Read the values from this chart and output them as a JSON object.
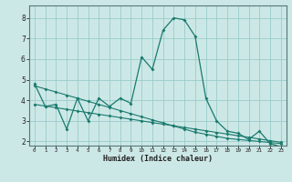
{
  "xlabel": "Humidex (Indice chaleur)",
  "background_color": "#cce8e6",
  "grid_color": "#99ccca",
  "line_color": "#1a7a6e",
  "xlim": [
    -0.5,
    23.5
  ],
  "ylim": [
    1.8,
    8.6
  ],
  "yticks": [
    2,
    3,
    4,
    5,
    6,
    7,
    8
  ],
  "xticks": [
    0,
    1,
    2,
    3,
    4,
    5,
    6,
    7,
    8,
    9,
    10,
    11,
    12,
    13,
    14,
    15,
    16,
    17,
    18,
    19,
    20,
    21,
    22,
    23
  ],
  "line1_x": [
    0,
    1,
    2,
    3,
    4,
    5,
    6,
    7,
    8,
    9,
    10,
    11,
    12,
    13,
    14,
    15,
    16,
    17,
    18,
    19,
    20,
    21,
    22,
    23
  ],
  "line1_y": [
    4.8,
    3.7,
    3.8,
    2.6,
    4.1,
    3.0,
    4.1,
    3.7,
    4.1,
    3.85,
    6.1,
    5.5,
    7.4,
    8.0,
    7.9,
    7.1,
    4.1,
    3.0,
    2.5,
    2.4,
    2.1,
    2.5,
    1.9,
    1.75
  ],
  "line2_x": [
    0,
    1,
    2,
    3,
    4,
    5,
    6,
    7,
    8,
    9,
    10,
    11,
    12,
    13,
    14,
    15,
    16,
    17,
    18,
    19,
    20,
    21,
    22,
    23
  ],
  "line2_y": [
    3.8,
    3.72,
    3.64,
    3.56,
    3.48,
    3.4,
    3.32,
    3.24,
    3.16,
    3.08,
    3.0,
    2.92,
    2.84,
    2.76,
    2.68,
    2.6,
    2.52,
    2.44,
    2.36,
    2.28,
    2.2,
    2.12,
    2.04,
    1.96
  ],
  "line3_x": [
    0,
    1,
    2,
    3,
    4,
    5,
    6,
    7,
    8,
    9,
    10,
    11,
    12,
    13,
    14,
    15,
    16,
    17,
    18,
    19,
    20,
    21,
    22,
    23
  ],
  "line3_y": [
    4.7,
    4.55,
    4.4,
    4.25,
    4.1,
    3.95,
    3.8,
    3.65,
    3.5,
    3.35,
    3.2,
    3.05,
    2.9,
    2.75,
    2.6,
    2.45,
    2.35,
    2.25,
    2.15,
    2.1,
    2.05,
    2.0,
    1.95,
    1.9
  ]
}
